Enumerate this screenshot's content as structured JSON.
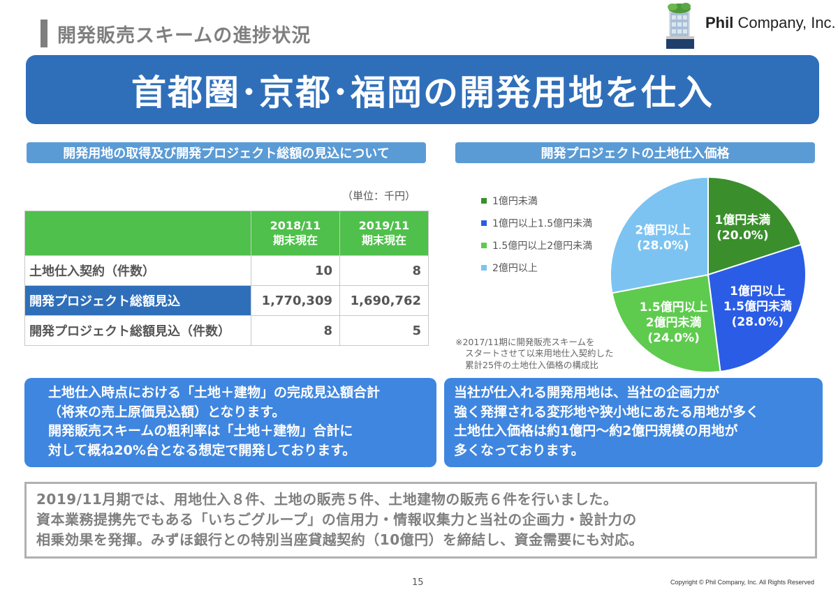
{
  "header": {
    "section_title": "開発販売スキームの進捗状況",
    "company_bold": "Phil",
    "company_rest": " Company, Inc."
  },
  "banner": {
    "title": "首都圏･京都･福岡の開発用地を仕入"
  },
  "left_panel": {
    "heading": "開発用地の取得及び開発プロジェクト総額の見込について",
    "unit": "（単位：千円）",
    "table": {
      "columns": [
        {
          "line1": "2018/11",
          "line2": "期末現在"
        },
        {
          "line1": "2019/11",
          "line2": "期末現在"
        }
      ],
      "rows": [
        {
          "label": "土地仕入契約（件数）",
          "values": [
            "10",
            "8"
          ]
        },
        {
          "label": "開発プロジェクト総額見込",
          "values": [
            "1,770,309",
            "1,690,762"
          ]
        },
        {
          "label": "開発プロジェクト総額見込（件数）",
          "values": [
            "8",
            "5"
          ]
        }
      ]
    }
  },
  "right_panel": {
    "heading": "開発プロジェクトの土地仕入価格",
    "note": [
      "※2017/11期に開発販売スキームを",
      "スタートさせて以来用地仕入契約した",
      "累計25件の土地仕入価格の構成比"
    ]
  },
  "chart_data": {
    "type": "pie",
    "series": [
      {
        "name": "1億円未満",
        "value": 20.0,
        "color": "#3a8f2c",
        "label_lines": [
          "1億円未満",
          "(20.0%)"
        ]
      },
      {
        "name": "1億円以上1.5億円未満",
        "value": 28.0,
        "color": "#2a5ce6",
        "label_lines": [
          "1億円以上",
          "1.5億円未満",
          "(28.0%)"
        ]
      },
      {
        "name": "1.5億円以上2億円未満",
        "value": 24.0,
        "color": "#5ecb4e",
        "label_lines": [
          "1.5億円以上",
          "2億円未満",
          "(24.0%)"
        ]
      },
      {
        "name": "2億円以上",
        "value": 28.0,
        "color": "#7cc3f2",
        "label_lines": [
          "2億円以上",
          "(28.0%)"
        ]
      }
    ],
    "legend_position": "left"
  },
  "callouts": {
    "left": [
      "土地仕入時点における「土地＋建物」の完成見込額合計",
      "（将来の売上原価見込額）となります。",
      "開発販売スキームの粗利率は「土地＋建物」合計に",
      "対して概ね20%台となる想定で開発しております。"
    ],
    "right": [
      "当社が仕入れる開発用地は、当社の企画力が",
      "強く発揮される変形地や狭小地にあたる用地が多く",
      "土地仕入価格は約1億円～約2億円規模の用地が",
      "多くなっております。"
    ]
  },
  "summary": [
    "2019/11月期では、用地仕入８件、土地の販売５件、土地建物の販売６件を行いました。",
    "資本業務提携先でもある「いちごグループ」の信用力・情報収集力と当社の企画力・設計力の",
    "相乗効果を発揮。みずほ銀行との特別当座貸越契約（10億円）を締結し、資金需要にも対応。"
  ],
  "footer": {
    "page_number": "15",
    "copyright": "Copyright © Phil Company, Inc.  All Rights Reserved"
  }
}
